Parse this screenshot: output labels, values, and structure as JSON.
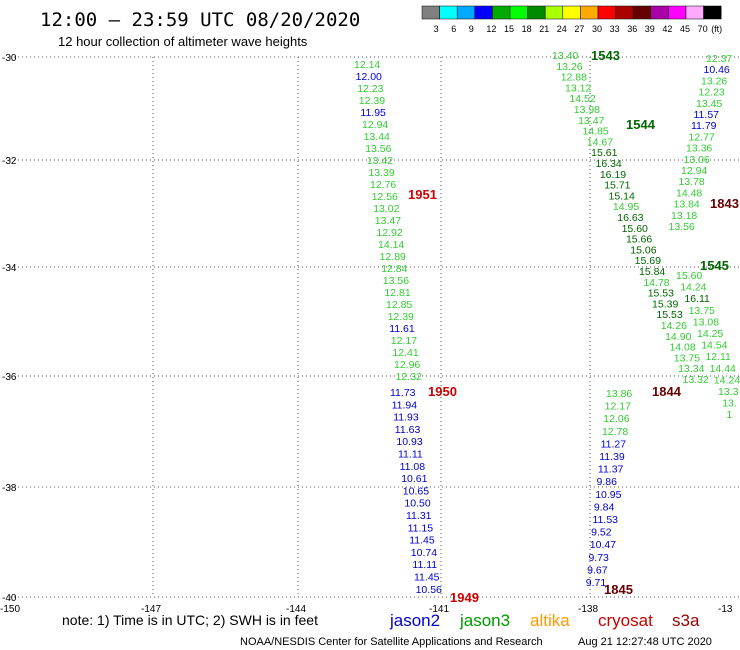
{
  "header": {
    "title": "12:00 – 23:59 UTC 08/20/2020",
    "subtitle": "12 hour collection of altimeter wave heights"
  },
  "colorbar": {
    "colors": [
      "#808080",
      "#00ffff",
      "#00aaff",
      "#0000ff",
      "#00aa00",
      "#00ff00",
      "#008800",
      "#aaff00",
      "#ffff00",
      "#ffaa00",
      "#ff0000",
      "#aa0000",
      "#660000",
      "#aa00aa",
      "#ff00ff",
      "#ffaaff",
      "#000000"
    ],
    "labels": [
      "3",
      "6",
      "9",
      "12",
      "15",
      "18",
      "21",
      "24",
      "27",
      "30",
      "33",
      "36",
      "39",
      "42",
      "45",
      "70",
      "(ft)"
    ]
  },
  "axes": {
    "lat_labels": [
      "-30",
      "-32",
      "-34",
      "-36",
      "-38",
      "-40"
    ],
    "lon_labels": [
      "-150",
      "-147",
      "-144",
      "-141",
      "-138",
      "-13"
    ]
  },
  "legend": {
    "note": "note: 1) Time is in UTC; 2) SWH is in feet",
    "satellites": [
      {
        "name": "jason2",
        "color": "#0000cc"
      },
      {
        "name": "jason3",
        "color": "#009900"
      },
      {
        "name": "altika",
        "color": "#ff9900"
      },
      {
        "name": "cryosat",
        "color": "#cc0000"
      },
      {
        "name": "s3a",
        "color": "#990000"
      }
    ]
  },
  "footer": {
    "credit": "NOAA/NESDIS Center for Satellite Applications and Research",
    "timestamp": "Aug 21 12:27:48 UTC 2020"
  },
  "tracks": [
    {
      "pass": "1951",
      "pass_color": "#cc0000",
      "values": [
        {
          "v": "12.14",
          "c": "#33cc33"
        },
        {
          "v": "12.00",
          "c": "#0000cc"
        },
        {
          "v": "12.23",
          "c": "#33cc33"
        },
        {
          "v": "12.39",
          "c": "#33cc33"
        },
        {
          "v": "11.95",
          "c": "#0000cc"
        },
        {
          "v": "12.94",
          "c": "#33cc33"
        },
        {
          "v": "13.44",
          "c": "#33cc33"
        },
        {
          "v": "13.56",
          "c": "#33cc33"
        },
        {
          "v": "13.42",
          "c": "#33cc33"
        },
        {
          "v": "13.39",
          "c": "#33cc33"
        },
        {
          "v": "12.76",
          "c": "#33cc33"
        },
        {
          "v": "12.56",
          "c": "#33cc33"
        },
        {
          "v": "13.02",
          "c": "#33cc33"
        },
        {
          "v": "13.47",
          "c": "#33cc33"
        },
        {
          "v": "12.92",
          "c": "#33cc33"
        },
        {
          "v": "14.14",
          "c": "#33cc33"
        },
        {
          "v": "12.89",
          "c": "#33cc33"
        },
        {
          "v": "12.84",
          "c": "#33cc33"
        },
        {
          "v": "13.56",
          "c": "#33cc33"
        },
        {
          "v": "12.81",
          "c": "#33cc33"
        },
        {
          "v": "12.85",
          "c": "#33cc33"
        },
        {
          "v": "12.39",
          "c": "#33cc33"
        },
        {
          "v": "11.61",
          "c": "#0000cc"
        },
        {
          "v": "12.17",
          "c": "#33cc33"
        },
        {
          "v": "12.41",
          "c": "#33cc33"
        },
        {
          "v": "12.96",
          "c": "#33cc33"
        },
        {
          "v": "12.32",
          "c": "#33cc33"
        }
      ]
    },
    {
      "pass": "1950",
      "pass_color": "#cc0000",
      "values": [
        {
          "v": "11.73",
          "c": "#0000cc"
        },
        {
          "v": "11.94",
          "c": "#0000cc"
        },
        {
          "v": "11.93",
          "c": "#0000cc"
        },
        {
          "v": "11.63",
          "c": "#0000cc"
        },
        {
          "v": "10.93",
          "c": "#0000cc"
        },
        {
          "v": "11.11",
          "c": "#0000cc"
        },
        {
          "v": "11.08",
          "c": "#0000cc"
        },
        {
          "v": "10.61",
          "c": "#0000cc"
        },
        {
          "v": "10.65",
          "c": "#0000cc"
        },
        {
          "v": "10.50",
          "c": "#0000cc"
        },
        {
          "v": "11.31",
          "c": "#0000cc"
        },
        {
          "v": "11.15",
          "c": "#0000cc"
        },
        {
          "v": "11.45",
          "c": "#0000cc"
        },
        {
          "v": "10.74",
          "c": "#0000cc"
        },
        {
          "v": "11.11",
          "c": "#0000cc"
        },
        {
          "v": "11.45",
          "c": "#0000cc"
        },
        {
          "v": "10.56",
          "c": "#0000cc"
        }
      ]
    },
    {
      "pass": "1949",
      "pass_color": "#cc0000",
      "values": []
    },
    {
      "pass": "1543",
      "pass_color": "#006600",
      "values": [
        {
          "v": "13.40",
          "c": "#33cc33"
        },
        {
          "v": "13.26",
          "c": "#33cc33"
        },
        {
          "v": "12.88",
          "c": "#33cc33"
        },
        {
          "v": "13.12",
          "c": "#33cc33"
        },
        {
          "v": "14.52",
          "c": "#33cc33"
        },
        {
          "v": "13.98",
          "c": "#33cc33"
        },
        {
          "v": "13.47",
          "c": "#33cc33"
        },
        {
          "v": "14.85",
          "c": "#33cc33"
        },
        {
          "v": "14.67",
          "c": "#33cc33"
        },
        {
          "v": "15.61",
          "c": "#006600"
        },
        {
          "v": "16.34",
          "c": "#006600"
        },
        {
          "v": "16.19",
          "c": "#006600"
        },
        {
          "v": "15.71",
          "c": "#006600"
        },
        {
          "v": "15.14",
          "c": "#006600"
        },
        {
          "v": "14.95",
          "c": "#33cc33"
        },
        {
          "v": "16.63",
          "c": "#006600"
        },
        {
          "v": "15.60",
          "c": "#006600"
        },
        {
          "v": "15.66",
          "c": "#006600"
        },
        {
          "v": "15.06",
          "c": "#006600"
        },
        {
          "v": "15.69",
          "c": "#006600"
        },
        {
          "v": "15.84",
          "c": "#006600"
        },
        {
          "v": "14.78",
          "c": "#33cc33"
        },
        {
          "v": "15.53",
          "c": "#006600"
        },
        {
          "v": "15.39",
          "c": "#006600"
        },
        {
          "v": "15.53",
          "c": "#006600"
        },
        {
          "v": "14.26",
          "c": "#33cc33"
        },
        {
          "v": "14.90",
          "c": "#33cc33"
        },
        {
          "v": "14.08",
          "c": "#33cc33"
        },
        {
          "v": "13.75",
          "c": "#33cc33"
        },
        {
          "v": "13.34",
          "c": "#33cc33"
        },
        {
          "v": "13.32",
          "c": "#33cc33"
        }
      ]
    },
    {
      "pass": "1544",
      "pass_color": "#006600",
      "values": []
    },
    {
      "pass": "1844",
      "pass_color": "#660000",
      "values": [
        {
          "v": "13.86",
          "c": "#33cc33"
        },
        {
          "v": "12.17",
          "c": "#33cc33"
        },
        {
          "v": "12.06",
          "c": "#33cc33"
        },
        {
          "v": "12.78",
          "c": "#33cc33"
        },
        {
          "v": "11.27",
          "c": "#0000cc"
        },
        {
          "v": "11.39",
          "c": "#0000cc"
        },
        {
          "v": "11.37",
          "c": "#0000cc"
        },
        {
          "v": "9.86",
          "c": "#0000cc"
        },
        {
          "v": "10.95",
          "c": "#0000cc"
        },
        {
          "v": "9.84",
          "c": "#0000cc"
        },
        {
          "v": "11.53",
          "c": "#0000cc"
        },
        {
          "v": "9.52",
          "c": "#0000cc"
        },
        {
          "v": "10.47",
          "c": "#0000cc"
        },
        {
          "v": "9.73",
          "c": "#0000cc"
        },
        {
          "v": "9.67",
          "c": "#0000cc"
        },
        {
          "v": "9.71",
          "c": "#0000cc"
        }
      ]
    },
    {
      "pass": "1845",
      "pass_color": "#660000",
      "values": []
    },
    {
      "pass": "1843",
      "pass_color": "#660000",
      "values": [
        {
          "v": "12.37",
          "c": "#33cc33"
        },
        {
          "v": "10.46",
          "c": "#0000cc"
        },
        {
          "v": "13.26",
          "c": "#33cc33"
        },
        {
          "v": "12.23",
          "c": "#33cc33"
        },
        {
          "v": "13.45",
          "c": "#33cc33"
        },
        {
          "v": "11.57",
          "c": "#0000cc"
        },
        {
          "v": "11.79",
          "c": "#0000cc"
        },
        {
          "v": "12.77",
          "c": "#33cc33"
        },
        {
          "v": "13.36",
          "c": "#33cc33"
        },
        {
          "v": "13.06",
          "c": "#33cc33"
        },
        {
          "v": "12.94",
          "c": "#33cc33"
        },
        {
          "v": "13.78",
          "c": "#33cc33"
        },
        {
          "v": "14.48",
          "c": "#33cc33"
        },
        {
          "v": "13.84",
          "c": "#33cc33"
        },
        {
          "v": "13.18",
          "c": "#33cc33"
        },
        {
          "v": "13.56",
          "c": "#33cc33"
        }
      ]
    },
    {
      "pass": "1545",
      "pass_color": "#006600",
      "values": [
        {
          "v": "15.60",
          "c": "#33cc33"
        },
        {
          "v": "14.24",
          "c": "#33cc33"
        },
        {
          "v": "16.11",
          "c": "#006600"
        },
        {
          "v": "13.75",
          "c": "#33cc33"
        },
        {
          "v": "13.08",
          "c": "#33cc33"
        },
        {
          "v": "14.25",
          "c": "#33cc33"
        },
        {
          "v": "14.54",
          "c": "#33cc33"
        },
        {
          "v": "12.11",
          "c": "#33cc33"
        },
        {
          "v": "14.44",
          "c": "#33cc33"
        },
        {
          "v": "14.24",
          "c": "#33cc33"
        },
        {
          "v": "13.3",
          "c": "#33cc33"
        },
        {
          "v": "13.",
          "c": "#33cc33"
        },
        {
          "v": "1",
          "c": "#33cc33"
        }
      ]
    }
  ]
}
